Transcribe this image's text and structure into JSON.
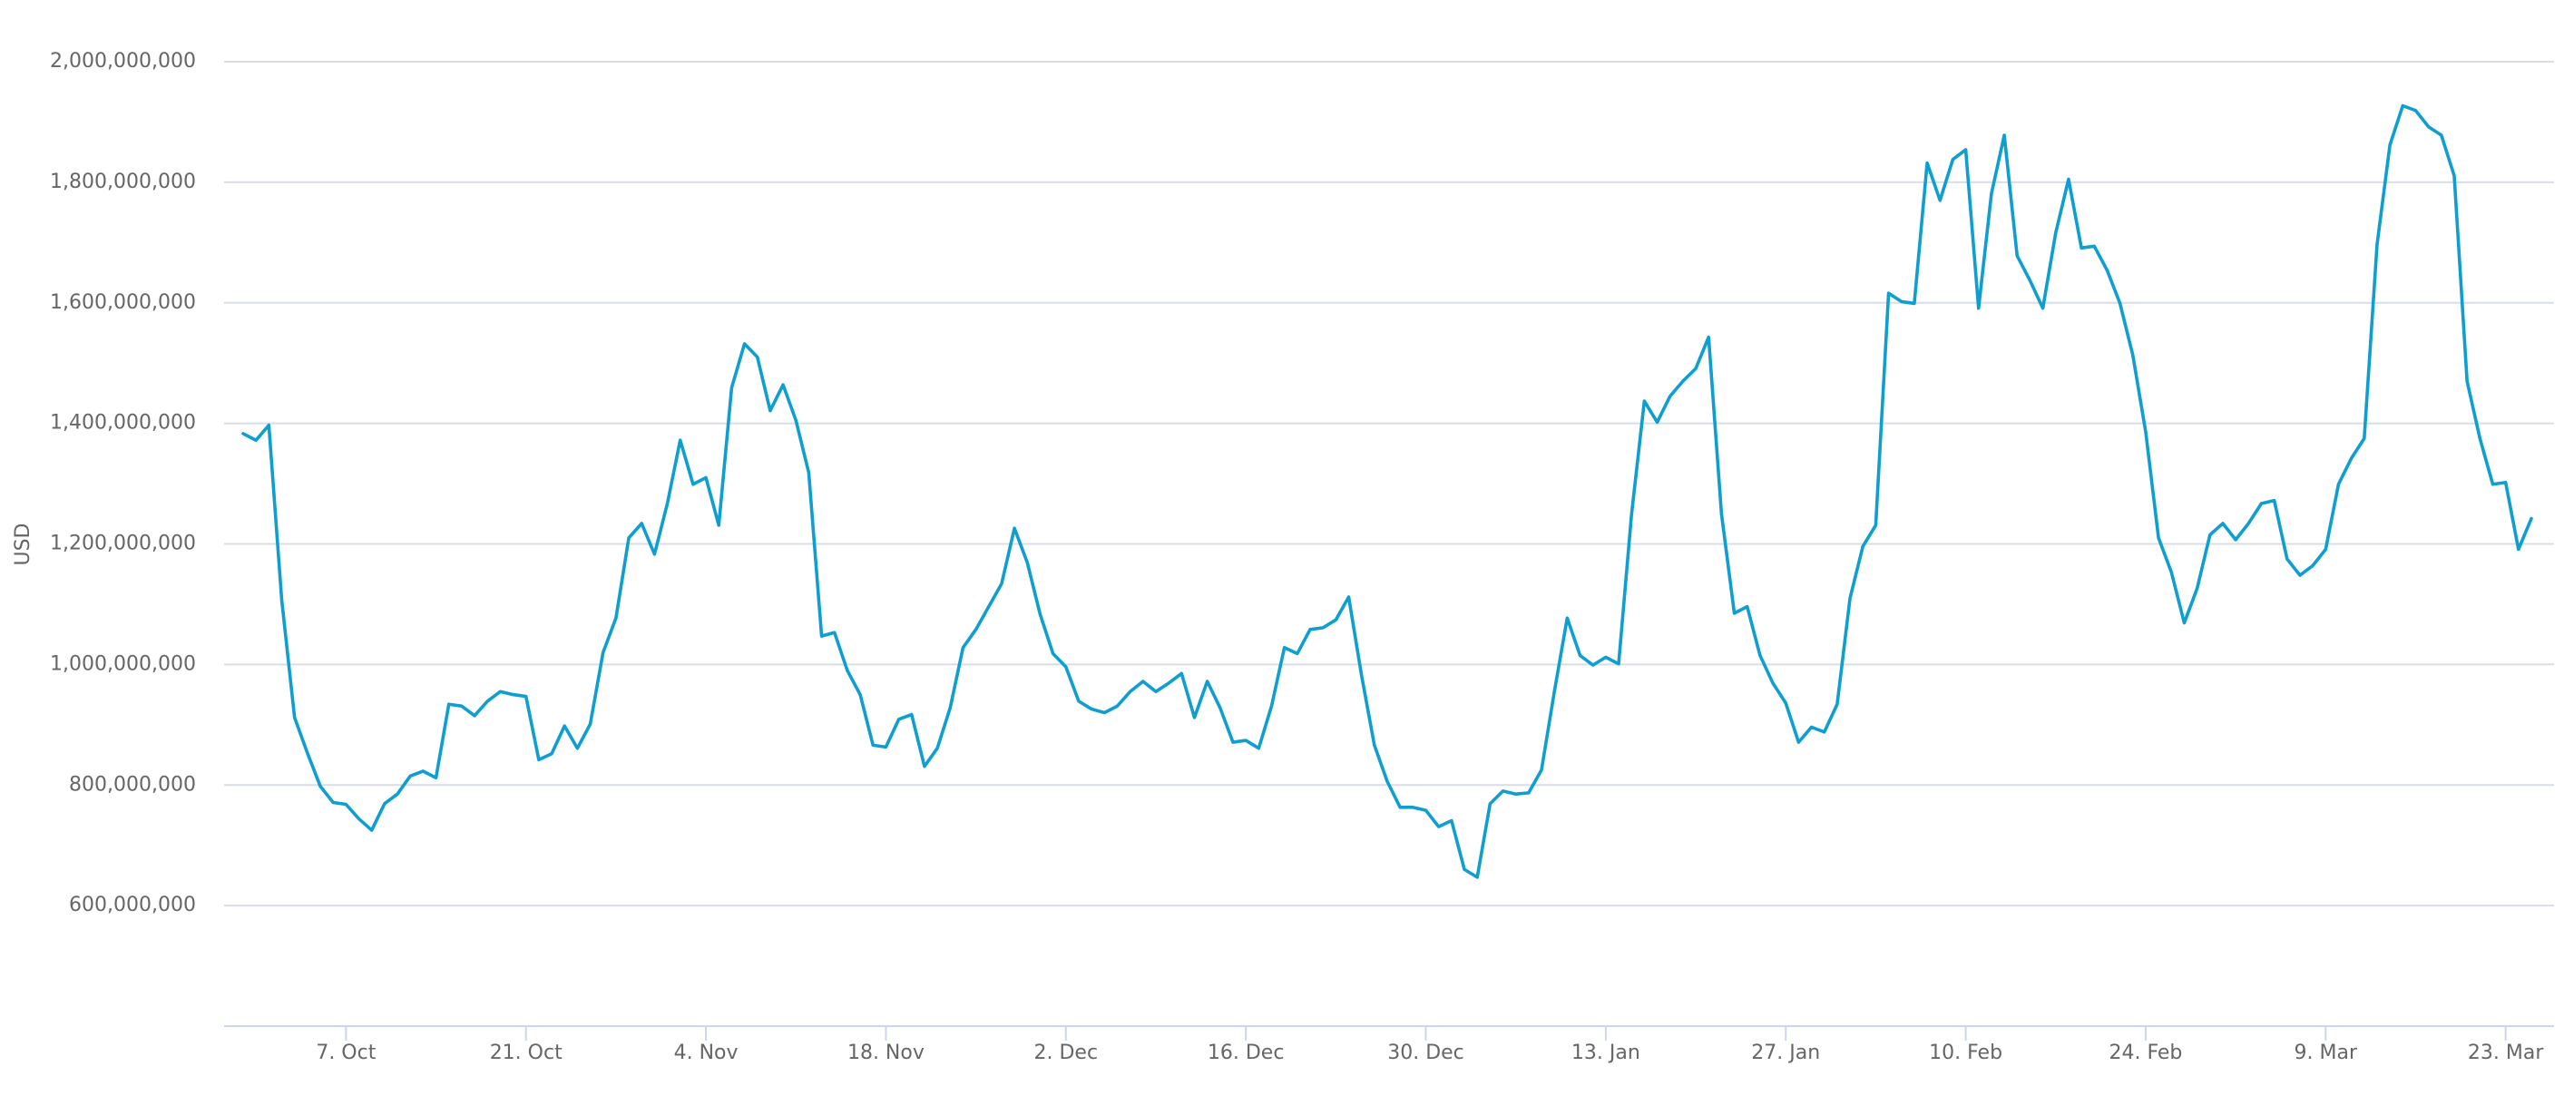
{
  "chart_data": {
    "type": "line",
    "y_label": "USD",
    "color": "#0e9fd0",
    "grid": true,
    "ylim": [
      400000000,
      2000000000
    ],
    "yticks": [
      {
        "value": 600000000,
        "label": "600,000,000"
      },
      {
        "value": 800000000,
        "label": "800,000,000"
      },
      {
        "value": 1000000000,
        "label": "1,000,000,000"
      },
      {
        "value": 1200000000,
        "label": "1,200,000,000"
      },
      {
        "value": 1400000000,
        "label": "1,400,000,000"
      },
      {
        "value": 1600000000,
        "label": "1,600,000,000"
      },
      {
        "value": 1800000000,
        "label": "1,800,000,000"
      },
      {
        "value": 2000000000,
        "label": "2,000,000,000"
      }
    ],
    "categories": [
      null,
      null,
      null,
      null,
      null,
      null,
      null,
      null,
      "7. Oct",
      null,
      null,
      null,
      null,
      null,
      null,
      null,
      null,
      null,
      null,
      null,
      null,
      null,
      "21. Oct",
      null,
      null,
      null,
      null,
      null,
      null,
      null,
      null,
      null,
      null,
      null,
      null,
      null,
      "4. Nov",
      null,
      null,
      null,
      null,
      null,
      null,
      null,
      null,
      null,
      null,
      null,
      null,
      null,
      "18. Nov",
      null,
      null,
      null,
      null,
      null,
      null,
      null,
      null,
      null,
      null,
      null,
      null,
      null,
      "2. Dec",
      null,
      null,
      null,
      null,
      null,
      null,
      null,
      null,
      null,
      null,
      null,
      null,
      null,
      "16. Dec",
      null,
      null,
      null,
      null,
      null,
      null,
      null,
      null,
      null,
      null,
      null,
      null,
      null,
      "30. Dec",
      null,
      null,
      null,
      null,
      null,
      null,
      null,
      null,
      null,
      null,
      null,
      null,
      null,
      "13. Jan",
      null,
      null,
      null,
      null,
      null,
      null,
      null,
      null,
      null,
      null,
      null,
      null,
      null,
      "27. Jan",
      null,
      null,
      null,
      null,
      null,
      null,
      null,
      null,
      null,
      null,
      null,
      null,
      null,
      "10. Feb",
      null,
      null,
      null,
      null,
      null,
      null,
      null,
      null,
      null,
      null,
      null,
      null,
      null,
      "24. Feb",
      null,
      null,
      null,
      null,
      null,
      null,
      null,
      null,
      null,
      null,
      null,
      null,
      null,
      "9. Mar",
      null,
      null,
      null,
      null,
      null,
      null,
      null,
      null,
      null,
      null,
      null,
      null,
      null,
      "23. Mar",
      null,
      null
    ],
    "values": [
      1383000000,
      1372000000,
      1397000000,
      1107000000,
      912000000,
      853000000,
      798000000,
      771000000,
      768000000,
      744000000,
      725000000,
      769000000,
      785000000,
      815000000,
      823000000,
      812000000,
      934000000,
      931000000,
      915000000,
      939000000,
      955000000,
      950000000,
      947000000,
      842000000,
      852000000,
      898000000,
      861000000,
      901000000,
      1020000000,
      1077000000,
      1210000000,
      1234000000,
      1183000000,
      1267000000,
      1372000000,
      1299000000,
      1310000000,
      1231000000,
      1459000000,
      1532000000,
      1510000000,
      1421000000,
      1464000000,
      1405000000,
      1318000000,
      1047000000,
      1053000000,
      990000000,
      950000000,
      866000000,
      863000000,
      909000000,
      917000000,
      831000000,
      861000000,
      928000000,
      1028000000,
      1058000000,
      1096000000,
      1134000000,
      1226000000,
      1169000000,
      1083000000,
      1018000000,
      996000000,
      939000000,
      926000000,
      920000000,
      931000000,
      955000000,
      972000000,
      955000000,
      969000000,
      985000000,
      912000000,
      972000000,
      928000000,
      871000000,
      874000000,
      861000000,
      931000000,
      1028000000,
      1018000000,
      1058000000,
      1061000000,
      1074000000,
      1112000000,
      982000000,
      866000000,
      806000000,
      763000000,
      763000000,
      758000000,
      731000000,
      741000000,
      660000000,
      647000000,
      769000000,
      790000000,
      785000000,
      787000000,
      825000000,
      955000000,
      1077000000,
      1015000000,
      999000000,
      1012000000,
      1001000000,
      1248000000,
      1437000000,
      1402000000,
      1445000000,
      1470000000,
      1491000000,
      1543000000,
      1250000000,
      1085000000,
      1096000000,
      1015000000,
      969000000,
      936000000,
      871000000,
      896000000,
      888000000,
      934000000,
      1110000000,
      1196000000,
      1231000000,
      1616000000,
      1602000000,
      1599000000,
      1832000000,
      1770000000,
      1838000000,
      1854000000,
      1591000000,
      1781000000,
      1878000000,
      1678000000,
      1637000000,
      1591000000,
      1716000000,
      1805000000,
      1691000000,
      1694000000,
      1654000000,
      1599000000,
      1513000000,
      1386000000,
      1210000000,
      1153000000,
      1069000000,
      1126000000,
      1215000000,
      1234000000,
      1207000000,
      1234000000,
      1267000000,
      1272000000,
      1175000000,
      1148000000,
      1164000000,
      1191000000,
      1299000000,
      1342000000,
      1375000000,
      1697000000,
      1862000000,
      1927000000,
      1919000000,
      1892000000,
      1878000000,
      1811000000,
      1470000000,
      1375000000,
      1299000000,
      1302000000,
      1191000000,
      1242000000
    ]
  }
}
